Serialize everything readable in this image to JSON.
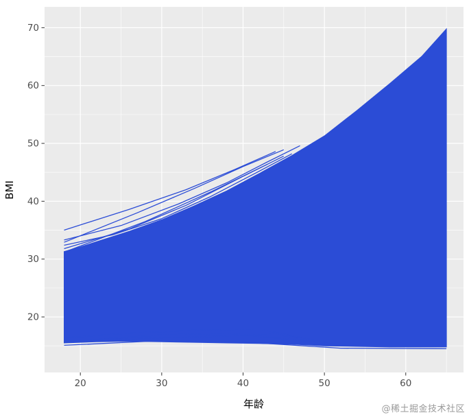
{
  "watermark": "@稀土掘金技术社区",
  "chart_data": {
    "type": "line",
    "title": "",
    "subtitle": "",
    "xlabel": "年龄",
    "ylabel": "BMI",
    "legend": "none",
    "grid": "on",
    "xlim": [
      15.6,
      67.1
    ],
    "ylim": [
      10.4,
      73.6
    ],
    "x_ticks": [
      20,
      30,
      40,
      50,
      60
    ],
    "y_ticks": [
      20,
      30,
      40,
      50,
      60,
      70
    ],
    "colors": {
      "line": "#2b4cd6",
      "panel_bg": "#EBEBEB",
      "grid": "#FFFFFF",
      "tick_mark": "#333333",
      "tick_label": "#4D4D4D"
    },
    "description": "Dense spaghetti plot of many individual BMI-by-age trajectories; hundreds of overlapping blue lines form a solid wedge from ages 18 to 65.",
    "dense_band": {
      "x": [
        18,
        20,
        22,
        26,
        30,
        34,
        38,
        42,
        46,
        50,
        54,
        58,
        62,
        65
      ],
      "top": [
        31.3,
        32.1,
        33.0,
        34.8,
        36.8,
        39.2,
        41.8,
        44.8,
        47.9,
        51.3,
        55.7,
        60.3,
        65.1,
        69.8
      ],
      "bottom": [
        15.5,
        15.6,
        15.7,
        15.8,
        15.7,
        15.6,
        15.5,
        15.4,
        15.3,
        15.0,
        14.9,
        14.8,
        14.8,
        14.8
      ]
    },
    "outlier_lines": [
      [
        [
          18,
          35.0
        ],
        [
          26,
          38.6
        ],
        [
          33,
          42.0
        ],
        [
          39,
          45.5
        ],
        [
          44,
          48.6
        ]
      ],
      [
        [
          18,
          33.3
        ],
        [
          25,
          35.8
        ],
        [
          32,
          39.5
        ],
        [
          38,
          43.2
        ],
        [
          43,
          46.8
        ],
        [
          47,
          49.6
        ]
      ],
      [
        [
          18,
          32.4
        ],
        [
          24,
          34.2
        ],
        [
          30,
          37.0
        ],
        [
          36,
          40.8
        ],
        [
          42,
          45.2
        ],
        [
          46,
          48.2
        ]
      ],
      [
        [
          18,
          31.8
        ],
        [
          26,
          35.2
        ],
        [
          33,
          39.3
        ],
        [
          40,
          44.3
        ],
        [
          45,
          47.8
        ]
      ],
      [
        [
          18,
          32.9
        ],
        [
          27,
          38.0
        ],
        [
          34,
          42.2
        ],
        [
          40,
          46.0
        ],
        [
          45,
          48.9
        ]
      ],
      [
        [
          18,
          31.2
        ],
        [
          28,
          36.5
        ],
        [
          36,
          41.6
        ],
        [
          43,
          46.4
        ]
      ],
      [
        [
          18,
          16.4
        ],
        [
          26,
          17.2
        ],
        [
          34,
          17.7
        ],
        [
          42,
          17.9
        ],
        [
          48,
          16.2
        ],
        [
          52,
          15.2
        ]
      ],
      [
        [
          20,
          15.9
        ],
        [
          30,
          16.9
        ],
        [
          38,
          17.2
        ],
        [
          46,
          16.1
        ],
        [
          53,
          15.0
        ]
      ],
      [
        [
          18,
          15.1
        ],
        [
          30,
          15.9
        ],
        [
          42,
          15.5
        ],
        [
          52,
          14.6
        ],
        [
          65,
          14.5
        ]
      ],
      [
        [
          22,
          16.1
        ],
        [
          33,
          16.5
        ],
        [
          44,
          17.0
        ],
        [
          50,
          15.6
        ]
      ]
    ]
  }
}
